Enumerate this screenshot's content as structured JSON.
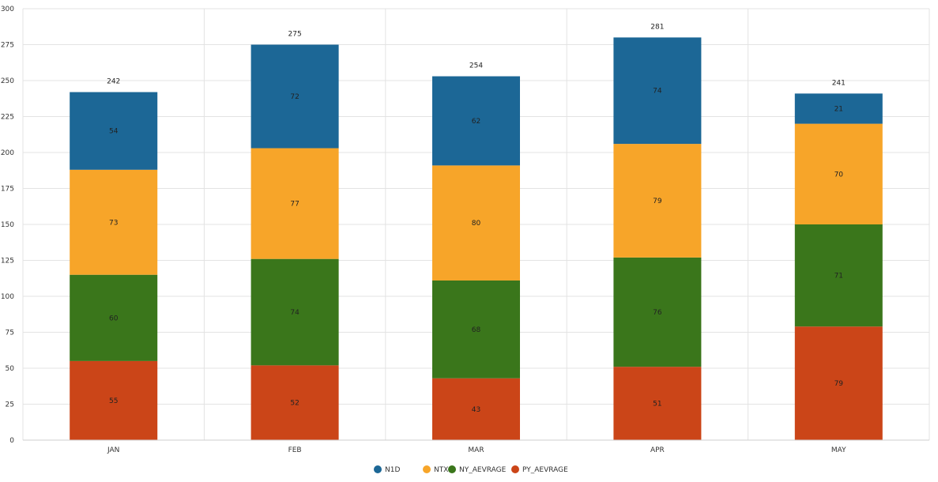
{
  "chart_data": {
    "type": "bar",
    "stacked": true,
    "categories": [
      "JAN",
      "FEB",
      "MAR",
      "APR",
      "MAY"
    ],
    "series": [
      {
        "name": "PY_AEVRAGE",
        "color": "#cb4518",
        "values": [
          55,
          52,
          43,
          51,
          79
        ]
      },
      {
        "name": "NY_AEVRAGE",
        "color": "#3a761b",
        "values": [
          60,
          74,
          68,
          76,
          71
        ]
      },
      {
        "name": "NTX",
        "color": "#f7a529",
        "values": [
          73,
          77,
          80,
          79,
          70
        ]
      },
      {
        "name": "N1D",
        "color": "#1c6796",
        "values": [
          54,
          72,
          62,
          74,
          21
        ]
      }
    ],
    "totals": [
      242,
      275,
      254,
      281,
      241
    ],
    "legend_order": [
      "N1D",
      "NTX",
      "NY_AEVRAGE",
      "PY_AEVRAGE"
    ],
    "yticks": [
      0,
      25,
      50,
      75,
      100,
      125,
      150,
      175,
      200,
      225,
      250,
      275,
      300
    ],
    "ylim": [
      0,
      300
    ],
    "grid": true,
    "legend_position": "bottom-center",
    "title": "",
    "xlabel": "",
    "ylabel": ""
  }
}
